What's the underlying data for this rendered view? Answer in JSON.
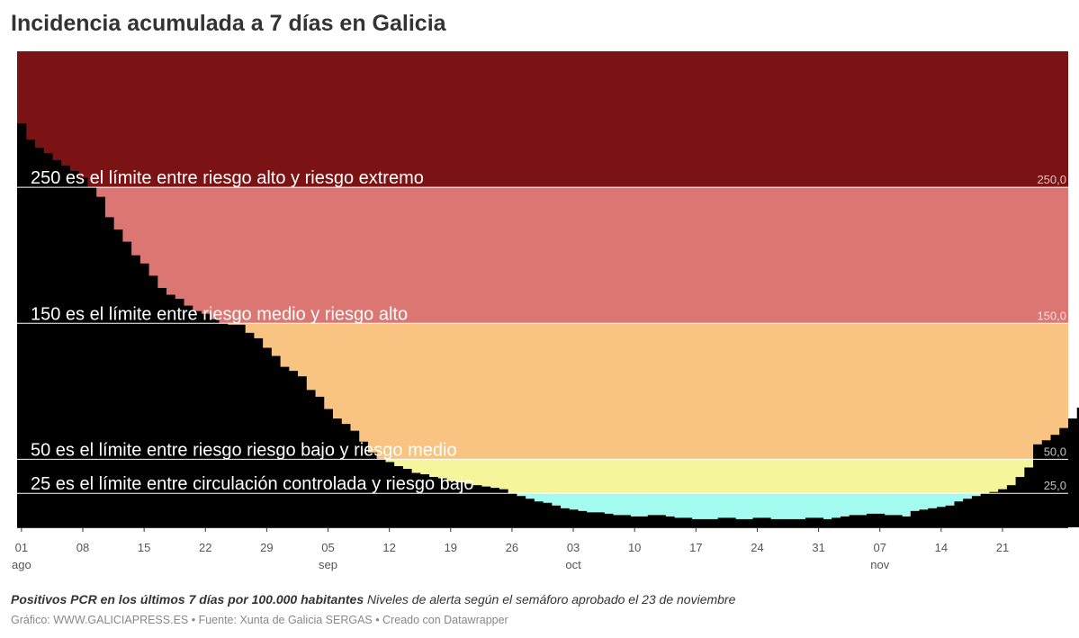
{
  "title": "Incidencia acumulada a 7 días en Galicia",
  "notes": {
    "bold": "Positivos PCR en los últimos 7 días por 100.000 habitantes",
    "text": "Niveles de alerta según el semáforo aprobado el 23 de noviembre"
  },
  "footer": "Gráfico: WWW.GALICIAPRESS.ES • Fuente: Xunta de Galicia SERGAS • Creado con Datawrapper",
  "chart_data": {
    "type": "area",
    "title": "Incidencia acumulada a 7 días en Galicia",
    "x_start": "2020-08-01",
    "x_end": "2020-11-28",
    "ylim": [
      0,
      350
    ],
    "grid": false,
    "x_ticks": [
      {
        "day": "01",
        "month": "ago"
      },
      {
        "day": "08",
        "month": ""
      },
      {
        "day": "15",
        "month": ""
      },
      {
        "day": "22",
        "month": ""
      },
      {
        "day": "29",
        "month": ""
      },
      {
        "day": "05",
        "month": "sep"
      },
      {
        "day": "12",
        "month": ""
      },
      {
        "day": "19",
        "month": ""
      },
      {
        "day": "26",
        "month": ""
      },
      {
        "day": "03",
        "month": "oct"
      },
      {
        "day": "10",
        "month": ""
      },
      {
        "day": "17",
        "month": ""
      },
      {
        "day": "24",
        "month": ""
      },
      {
        "day": "31",
        "month": ""
      },
      {
        "day": "07",
        "month": "nov"
      },
      {
        "day": "14",
        "month": ""
      },
      {
        "day": "21",
        "month": ""
      }
    ],
    "bands": [
      {
        "from": 0,
        "to": 25,
        "color": "#a4fcf0"
      },
      {
        "from": 25,
        "to": 50,
        "color": "#f5f59c"
      },
      {
        "from": 50,
        "to": 150,
        "color": "#f9c482"
      },
      {
        "from": 150,
        "to": 250,
        "color": "#dc7673"
      },
      {
        "from": 250,
        "to": 350,
        "color": "#7b1314"
      }
    ],
    "threshold_lines": [
      {
        "value": 25,
        "label": "25,0",
        "annotation": "25 es el límite entre circulación controlada y riesgo bajo"
      },
      {
        "value": 50,
        "label": "50,0",
        "annotation": "50 es el límite entre riesgo riesgo bajo y riesgo medio"
      },
      {
        "value": 150,
        "label": "150,0",
        "annotation": "150 es el límite entre riesgo medio y riesgo alto"
      },
      {
        "value": 250,
        "label": "250,0",
        "annotation": "250 es el límite entre riesgo alto y riesgo extremo"
      }
    ],
    "series": [
      {
        "color": "#000000",
        "values": [
          297,
          285,
          279,
          275,
          270,
          266,
          262,
          257,
          250,
          243,
          228,
          219,
          210,
          200,
          194,
          185,
          176,
          171,
          168,
          163,
          159,
          157,
          153,
          150,
          149,
          149,
          143,
          139,
          132,
          126,
          118,
          115,
          111,
          101,
          96,
          87,
          80,
          76,
          71,
          63,
          55,
          50,
          48,
          45,
          43,
          40,
          39,
          37,
          36,
          34,
          33,
          32,
          31,
          30,
          29,
          28,
          25,
          23,
          21,
          19,
          18,
          16,
          14,
          13,
          12,
          11,
          11,
          10,
          9,
          9,
          8,
          8,
          9,
          9,
          8,
          7,
          7,
          6,
          6,
          6,
          7,
          7,
          6,
          6,
          7,
          7,
          6,
          6,
          6,
          6,
          7,
          7,
          6,
          7,
          8,
          9,
          9,
          10,
          10,
          9,
          9,
          8,
          12,
          13,
          14,
          15,
          16,
          19,
          21,
          23,
          25,
          26,
          28,
          31,
          37,
          44,
          61,
          64,
          68,
          73,
          80,
          88,
          94
        ]
      }
    ]
  }
}
